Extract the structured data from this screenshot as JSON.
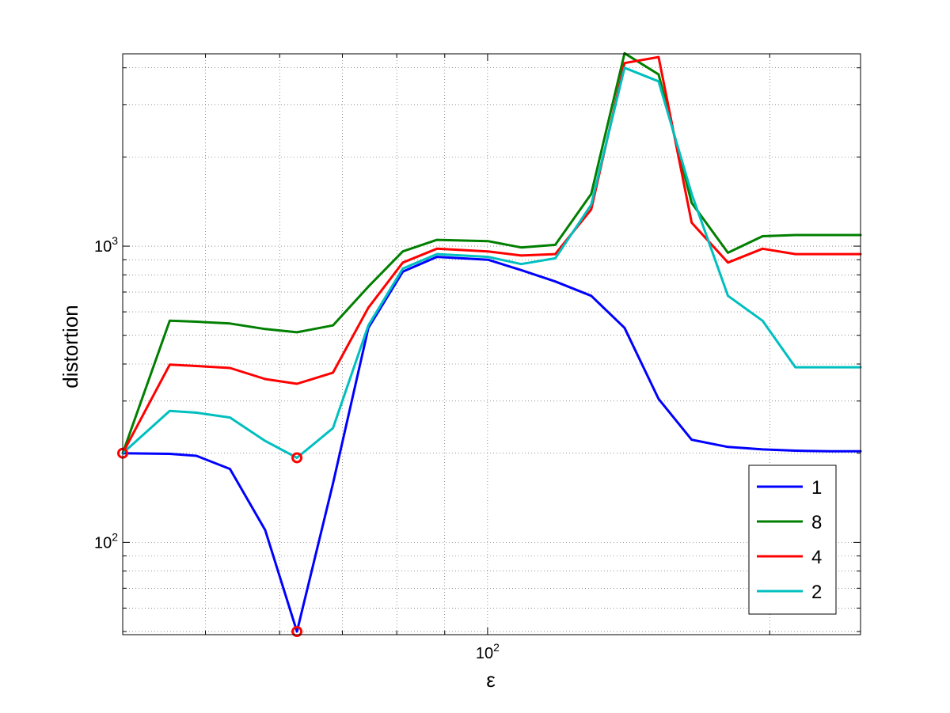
{
  "chart_data": {
    "type": "line",
    "xlabel": "ε",
    "ylabel": "distortion",
    "xscale": "log",
    "yscale": "log",
    "grid": true,
    "xlim": [
      40.8,
      250
    ],
    "ylim": [
      48.8,
      4460
    ],
    "x_tick_labels": [
      {
        "value": 100,
        "base": "10",
        "exp": "2"
      }
    ],
    "y_tick_labels": [
      {
        "value": 100,
        "base": "10",
        "exp": "2"
      },
      {
        "value": 1000,
        "base": "10",
        "exp": "3"
      }
    ],
    "legend": {
      "position": "bottom-right"
    },
    "x": [
      40.8,
      45.8,
      48.9,
      53.1,
      57.9,
      62.6,
      68.4,
      74.6,
      81.2,
      88.3,
      100.1,
      108.6,
      118.1,
      129.0,
      140.0,
      152.2,
      165.1,
      180.5,
      196.5,
      213.0,
      232.0,
      250.0
    ],
    "series": [
      {
        "name": "1",
        "color": "#0000ff",
        "values": [
          200,
          199,
          196,
          177,
          110,
          50,
          158,
          530,
          820,
          920,
          900,
          830,
          760,
          680,
          530,
          305,
          222,
          210,
          206,
          204,
          203,
          203
        ]
      },
      {
        "name": "8",
        "color": "#007f00",
        "values": [
          200,
          560,
          556,
          548,
          525,
          512,
          540,
          730,
          960,
          1050,
          1040,
          990,
          1010,
          1500,
          4480,
          3800,
          1400,
          950,
          1080,
          1090,
          1090,
          1090
        ]
      },
      {
        "name": "4",
        "color": "#ff0000",
        "values": [
          200,
          398,
          394,
          388,
          356,
          343,
          374,
          620,
          880,
          980,
          960,
          930,
          940,
          1330,
          4150,
          4350,
          1200,
          880,
          980,
          940,
          940,
          940
        ]
      },
      {
        "name": "2",
        "color": "#00bfbf",
        "values": [
          200,
          278,
          274,
          264,
          220,
          193,
          243,
          540,
          840,
          940,
          920,
          870,
          910,
          1380,
          4000,
          3600,
          1500,
          680,
          560,
          390,
          390,
          390
        ]
      }
    ],
    "markers": [
      {
        "x": 40.8,
        "y": 200
      },
      {
        "x": 62.6,
        "y": 193
      },
      {
        "x": 62.6,
        "y": 50
      }
    ]
  }
}
